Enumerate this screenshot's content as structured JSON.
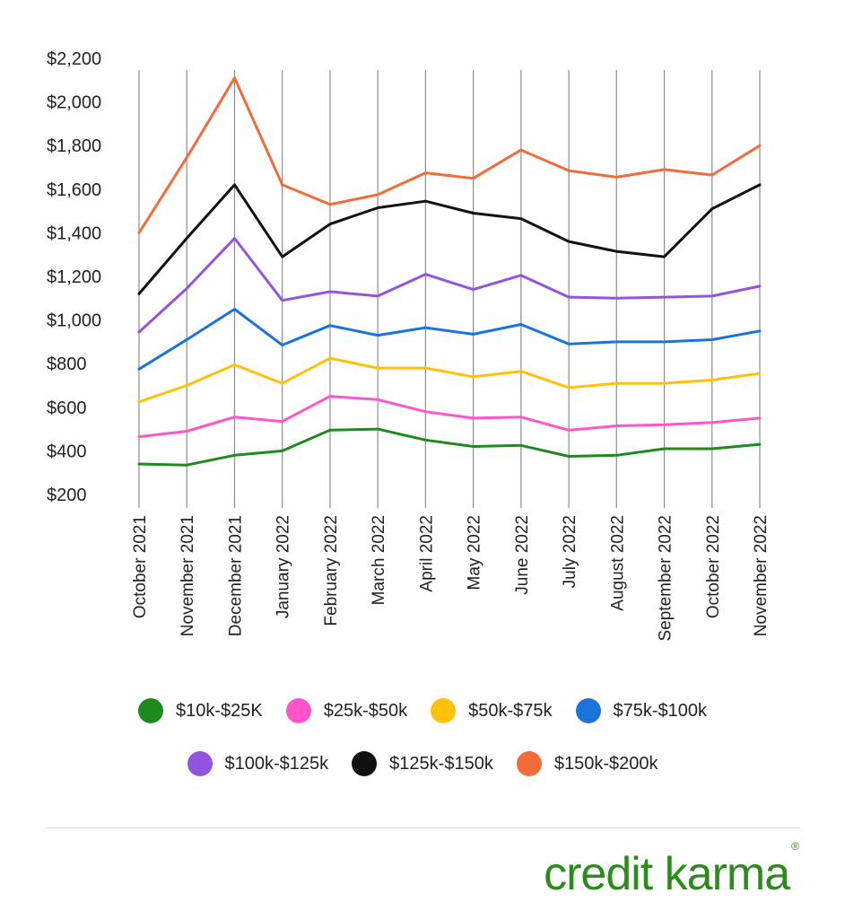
{
  "chart_data": {
    "type": "line",
    "categories": [
      "October 2021",
      "November 2021",
      "December 2021",
      "January 2022",
      "February 2022",
      "March 2022",
      "April 2022",
      "May 2022",
      "June 2022",
      "July 2022",
      "August 2022",
      "September 2022",
      "October 2022",
      "November 2022"
    ],
    "ylim": [
      200,
      2200
    ],
    "yticks": [
      200,
      400,
      600,
      800,
      1000,
      1200,
      1400,
      1600,
      1800,
      2000,
      2200
    ],
    "ytick_labels": [
      "$200",
      "$400",
      "$600",
      "$800",
      "$1,000",
      "$1,200",
      "$1,400",
      "$1,600",
      "$1,800",
      "$2,000",
      "$2,200"
    ],
    "grid": "vertical",
    "legend_position": "bottom",
    "series": [
      {
        "name": "$10k-$25K",
        "color": "#1e8a1e",
        "values": [
          340,
          335,
          380,
          400,
          495,
          500,
          450,
          420,
          425,
          375,
          380,
          410,
          410,
          430
        ]
      },
      {
        "name": "$25k-$50k",
        "color": "#ff55c8",
        "values": [
          465,
          490,
          555,
          535,
          650,
          635,
          580,
          550,
          555,
          495,
          515,
          520,
          530,
          550
        ]
      },
      {
        "name": "$50k-$75k",
        "color": "#ffc107",
        "values": [
          625,
          700,
          795,
          710,
          825,
          780,
          780,
          740,
          765,
          690,
          710,
          710,
          725,
          755
        ]
      },
      {
        "name": "$75k-$100k",
        "color": "#1a73d9",
        "values": [
          775,
          910,
          1050,
          885,
          975,
          930,
          965,
          935,
          980,
          890,
          900,
          900,
          910,
          950
        ]
      },
      {
        "name": "$100k-$125k",
        "color": "#9254de",
        "values": [
          945,
          1145,
          1375,
          1090,
          1130,
          1110,
          1210,
          1140,
          1205,
          1105,
          1100,
          1105,
          1110,
          1155
        ]
      },
      {
        "name": "$125k-$150k",
        "color": "#111111",
        "values": [
          1120,
          1375,
          1620,
          1290,
          1440,
          1515,
          1545,
          1490,
          1465,
          1360,
          1315,
          1290,
          1510,
          1620
        ]
      },
      {
        "name": "$150k-$200k",
        "color": "#f26b3a",
        "values": [
          1400,
          1745,
          2110,
          1620,
          1530,
          1575,
          1675,
          1650,
          1780,
          1685,
          1655,
          1690,
          1665,
          1800
        ]
      }
    ]
  },
  "legend": {
    "row1": [
      {
        "label": "$10k-$25K",
        "color": "#1e8a1e"
      },
      {
        "label": "$25k-$50k",
        "color": "#ff55c8"
      },
      {
        "label": "$50k-$75k",
        "color": "#ffc107"
      },
      {
        "label": "$75k-$100k",
        "color": "#1a73d9"
      }
    ],
    "row2": [
      {
        "label": "$100k-$125k",
        "color": "#9254de"
      },
      {
        "label": "$125k-$150k",
        "color": "#111111"
      },
      {
        "label": "$150k-$200k",
        "color": "#f26b3a"
      }
    ]
  },
  "brand": {
    "name": "credit karma",
    "mark": "®",
    "color": "#2d8a1f"
  }
}
